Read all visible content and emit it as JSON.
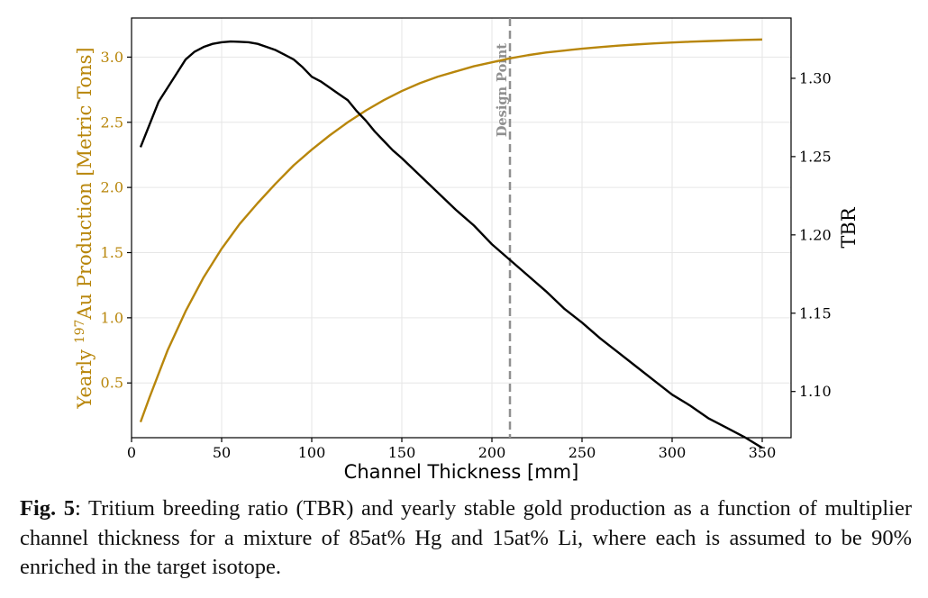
{
  "chart_data": {
    "type": "line",
    "xlabel": "Channel Thickness [mm]",
    "ylabel_left": {
      "prefix": "Yearly ",
      "superscript": "197",
      "suffix": "Au Production [Metric Tons]"
    },
    "ylabel_right": "TBR",
    "xlim": [
      0,
      366
    ],
    "ylim_left": [
      0.08,
      3.3
    ],
    "ylim_right": [
      1.0705,
      1.3385
    ],
    "xticks": [
      {
        "value": 0,
        "label": "0"
      },
      {
        "value": 50,
        "label": "50"
      },
      {
        "value": 100,
        "label": "100"
      },
      {
        "value": 150,
        "label": "150"
      },
      {
        "value": 200,
        "label": "200"
      },
      {
        "value": 250,
        "label": "250"
      },
      {
        "value": 300,
        "label": "300"
      },
      {
        "value": 350,
        "label": "350"
      }
    ],
    "yticks_left": [
      {
        "value": 0.5,
        "label": "0.5"
      },
      {
        "value": 1.0,
        "label": "1.0"
      },
      {
        "value": 1.5,
        "label": "1.5"
      },
      {
        "value": 2.0,
        "label": "2.0"
      },
      {
        "value": 2.5,
        "label": "2.5"
      },
      {
        "value": 3.0,
        "label": "3.0"
      }
    ],
    "yticks_right": [
      {
        "value": 1.1,
        "label": "1.10"
      },
      {
        "value": 1.15,
        "label": "1.15"
      },
      {
        "value": 1.2,
        "label": "1.20"
      },
      {
        "value": 1.25,
        "label": "1.25"
      },
      {
        "value": 1.3,
        "label": "1.30"
      }
    ],
    "grid": true,
    "design_point": {
      "x": 210,
      "label": "Design Point"
    },
    "series": [
      {
        "name": "Yearly 197Au Production",
        "axis": "left",
        "color": "#b8860b",
        "x": [
          5,
          10,
          20,
          30,
          40,
          50,
          60,
          70,
          80,
          90,
          100,
          110,
          120,
          130,
          140,
          150,
          160,
          170,
          180,
          190,
          200,
          210,
          220,
          230,
          240,
          250,
          260,
          270,
          280,
          290,
          300,
          310,
          320,
          330,
          340,
          350
        ],
        "values": [
          0.2,
          0.39,
          0.75,
          1.05,
          1.31,
          1.53,
          1.72,
          1.88,
          2.03,
          2.17,
          2.29,
          2.4,
          2.5,
          2.59,
          2.67,
          2.74,
          2.8,
          2.85,
          2.89,
          2.93,
          2.96,
          2.99,
          3.015,
          3.035,
          3.05,
          3.065,
          3.077,
          3.088,
          3.097,
          3.105,
          3.112,
          3.118,
          3.123,
          3.128,
          3.132,
          3.135
        ]
      },
      {
        "name": "TBR",
        "axis": "right",
        "color": "#000000",
        "x": [
          5,
          15,
          25,
          30,
          35,
          40,
          45,
          50,
          55,
          60,
          65,
          70,
          75,
          80,
          85,
          90,
          95,
          100,
          105,
          110,
          115,
          120,
          125,
          130,
          135,
          140,
          145,
          150,
          160,
          170,
          180,
          190,
          200,
          210,
          220,
          230,
          240,
          250,
          260,
          270,
          280,
          290,
          300,
          310,
          320,
          330,
          340,
          350
        ],
        "values": [
          1.256,
          1.285,
          1.303,
          1.312,
          1.317,
          1.32,
          1.322,
          1.323,
          1.3235,
          1.3233,
          1.323,
          1.322,
          1.32,
          1.318,
          1.315,
          1.312,
          1.307,
          1.301,
          1.298,
          1.294,
          1.29,
          1.286,
          1.279,
          1.273,
          1.266,
          1.26,
          1.254,
          1.249,
          1.238,
          1.227,
          1.216,
          1.206,
          1.194,
          1.184,
          1.174,
          1.164,
          1.153,
          1.144,
          1.134,
          1.125,
          1.116,
          1.107,
          1.098,
          1.091,
          1.083,
          1.077,
          1.071,
          1.064
        ]
      }
    ]
  },
  "caption": {
    "label": "Fig. 5",
    "text": ": Tritium breeding ratio (TBR) and yearly stable gold production as a function of multiplier channel thickness for a mixture of 85at% Hg and 15at% Li, where each is assumed to be 90% enriched in the target isotope."
  },
  "colors": {
    "gold": "#b8860b",
    "tbr": "#000000",
    "design_line": "#909090",
    "grid": "#e6e6e6"
  }
}
